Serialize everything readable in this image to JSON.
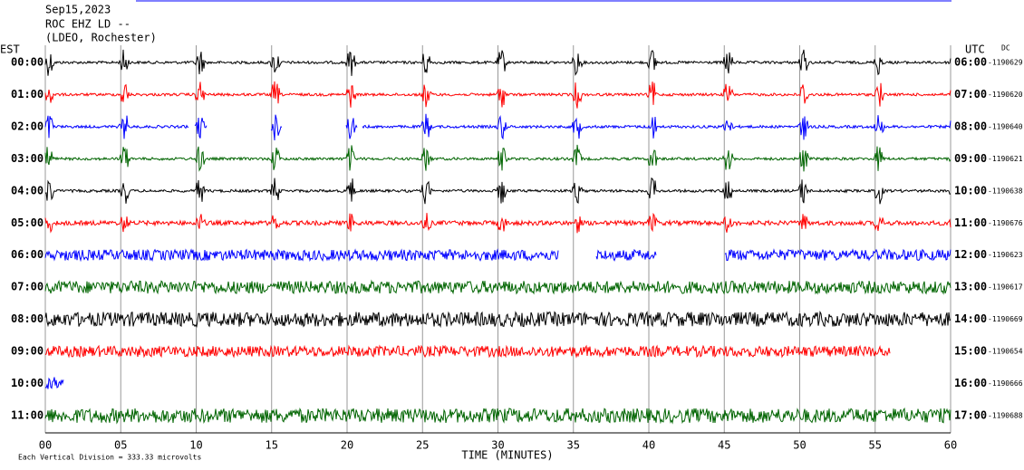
{
  "chart_data": {
    "type": "helicorder",
    "title_lines": [
      "Sep15,2023",
      "ROC EHZ LD --",
      "(LDEO, Rochester)"
    ],
    "left_zone": "EST",
    "right_zone": "UTC",
    "dc_label": "DC",
    "rows": [
      {
        "est": "00:00",
        "utc": "06:00",
        "dc": "-1190629",
        "color": "#000000"
      },
      {
        "est": "01:00",
        "utc": "07:00",
        "dc": "-1190620",
        "color": "#ff0000"
      },
      {
        "est": "02:00",
        "utc": "08:00",
        "dc": "-1190640",
        "color": "#0000ff"
      },
      {
        "est": "03:00",
        "utc": "09:00",
        "dc": "-1190621",
        "color": "#006400"
      },
      {
        "est": "04:00",
        "utc": "10:00",
        "dc": "-1190638",
        "color": "#000000"
      },
      {
        "est": "05:00",
        "utc": "11:00",
        "dc": "-1190676",
        "color": "#ff0000"
      },
      {
        "est": "06:00",
        "utc": "12:00",
        "dc": "-1190623",
        "color": "#0000ff"
      },
      {
        "est": "07:00",
        "utc": "13:00",
        "dc": "-1190617",
        "color": "#006400"
      },
      {
        "est": "08:00",
        "utc": "14:00",
        "dc": "-1190669",
        "color": "#000000"
      },
      {
        "est": "09:00",
        "utc": "15:00",
        "dc": "-1190654",
        "color": "#ff0000"
      },
      {
        "est": "10:00",
        "utc": "16:00",
        "dc": "-1190666",
        "color": "#0000ff"
      },
      {
        "est": "11:00",
        "utc": "17:00",
        "dc": "-1190688",
        "color": "#006400"
      }
    ],
    "xlim": [
      0,
      60
    ],
    "xticks": [
      {
        "value": 0,
        "label": "00"
      },
      {
        "value": 5,
        "label": "05"
      },
      10,
      15,
      20,
      25,
      30,
      35,
      40,
      45,
      50,
      55,
      60
    ],
    "xlabel": "TIME (MINUTES)",
    "note": "Each Vertical Division =  333.33 microvolts"
  }
}
